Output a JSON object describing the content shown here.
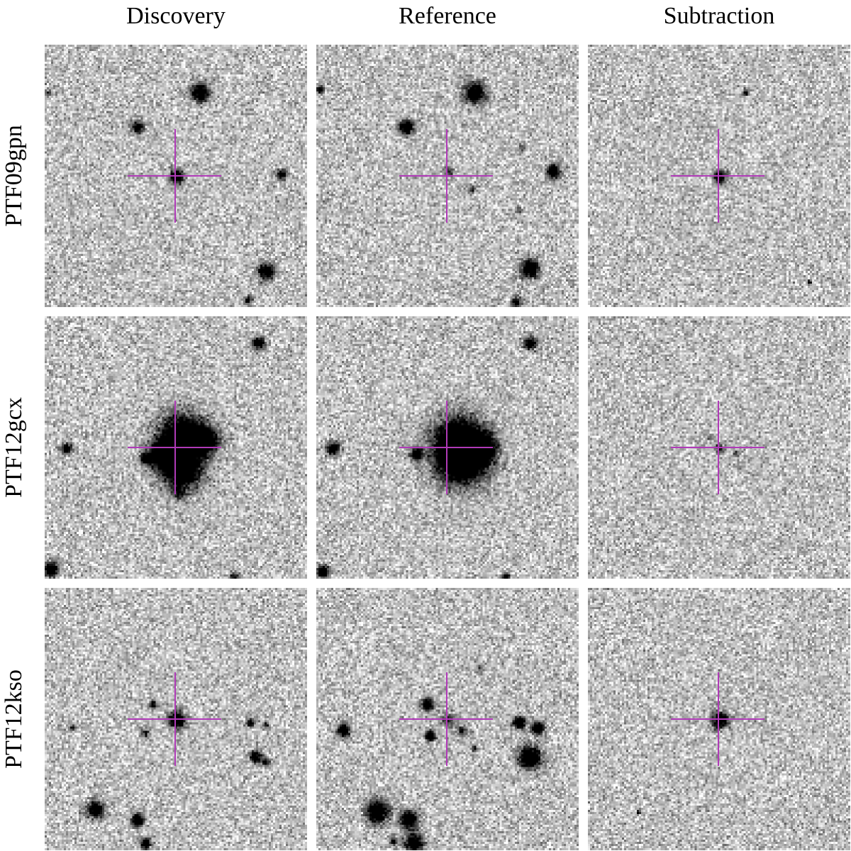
{
  "columns": [
    "Discovery",
    "Reference",
    "Subtraction"
  ],
  "rows": [
    {
      "label": "PTF09gpn",
      "panels": [
        {
          "seed": 11,
          "blobs": [
            [
              0.59,
              0.18,
              9,
              1
            ],
            [
              0.35,
              0.31,
              6,
              0.9
            ],
            [
              0.5,
              0.5,
              7,
              1
            ],
            [
              0.9,
              0.49,
              5,
              0.8
            ],
            [
              0.84,
              0.86,
              8,
              1
            ],
            [
              0.77,
              0.97,
              4,
              0.7
            ],
            [
              0.01,
              0.18,
              3,
              0.6
            ]
          ]
        },
        {
          "seed": 23,
          "blobs": [
            [
              0.6,
              0.18,
              10,
              1
            ],
            [
              0.34,
              0.31,
              7,
              1
            ],
            [
              0.5,
              0.48,
              5,
              0.55
            ],
            [
              0.59,
              0.55,
              4,
              0.5
            ],
            [
              0.9,
              0.48,
              7,
              1
            ],
            [
              0.81,
              0.85,
              9,
              1
            ],
            [
              0.76,
              0.98,
              5,
              0.8
            ],
            [
              0.78,
              0.39,
              3,
              0.5
            ],
            [
              0.01,
              0.17,
              4,
              0.7
            ],
            [
              0.77,
              0.63,
              3,
              0.5
            ]
          ]
        },
        {
          "seed": 37,
          "blobs": [
            [
              0.5,
              0.5,
              6,
              1
            ],
            [
              0.6,
              0.18,
              3,
              0.8
            ],
            [
              0.84,
              0.9,
              2,
              0.8
            ]
          ]
        }
      ],
      "crosshair": true
    },
    {
      "label": "PTF12gcx",
      "panels": [
        {
          "seed": 41,
          "blobs": [
            [
              0.52,
              0.45,
              22,
              1
            ],
            [
              0.52,
              0.58,
              20,
              1
            ],
            [
              0.61,
              0.47,
              13,
              0.9
            ],
            [
              0.45,
              0.52,
              14,
              1
            ],
            [
              0.38,
              0.54,
              5,
              1
            ],
            [
              0.08,
              0.5,
              5,
              0.9
            ],
            [
              0.81,
              0.1,
              6,
              1
            ],
            [
              0.02,
              0.96,
              7,
              1
            ],
            [
              0.72,
              0.99,
              4,
              0.8
            ],
            [
              0.51,
              0.67,
              6,
              0.5
            ]
          ]
        },
        {
          "seed": 53,
          "blobs": [
            [
              0.54,
              0.47,
              24,
              1
            ],
            [
              0.55,
              0.55,
              24,
              1
            ],
            [
              0.62,
              0.5,
              15,
              0.9
            ],
            [
              0.38,
              0.52,
              6,
              1
            ],
            [
              0.06,
              0.5,
              6,
              1
            ],
            [
              0.81,
              0.1,
              6,
              1
            ],
            [
              0.02,
              0.97,
              6,
              1
            ],
            [
              0.72,
              0.99,
              4,
              0.8
            ]
          ]
        },
        {
          "seed": 67,
          "blobs": [
            [
              0.5,
              0.5,
              5,
              0.55
            ],
            [
              0.46,
              0.46,
              3,
              0.4
            ],
            [
              0.56,
              0.52,
              3,
              0.4
            ]
          ]
        }
      ],
      "crosshair": true
    },
    {
      "label": "PTF12kso",
      "panels": [
        {
          "seed": 71,
          "blobs": [
            [
              0.5,
              0.5,
              8,
              1
            ],
            [
              0.41,
              0.44,
              4,
              0.8
            ],
            [
              0.38,
              0.55,
              4,
              0.6
            ],
            [
              0.1,
              0.53,
              3,
              0.6
            ],
            [
              0.19,
              0.84,
              8,
              1
            ],
            [
              0.35,
              0.88,
              6,
              1
            ],
            [
              0.38,
              0.97,
              5,
              0.9
            ],
            [
              0.78,
              0.51,
              4,
              0.7
            ],
            [
              0.84,
              0.52,
              3,
              0.6
            ],
            [
              0.8,
              0.64,
              6,
              0.9
            ],
            [
              0.84,
              0.66,
              4,
              0.7
            ]
          ]
        },
        {
          "seed": 83,
          "blobs": [
            [
              0.5,
              0.5,
              6,
              0.6
            ],
            [
              0.55,
              0.54,
              5,
              0.6
            ],
            [
              0.42,
              0.44,
              6,
              1
            ],
            [
              0.43,
              0.56,
              5,
              1
            ],
            [
              0.1,
              0.54,
              6,
              1
            ],
            [
              0.23,
              0.85,
              11,
              1
            ],
            [
              0.35,
              0.88,
              9,
              1
            ],
            [
              0.37,
              0.97,
              9,
              1
            ],
            [
              0.29,
              0.96,
              4,
              0.7
            ],
            [
              0.77,
              0.51,
              6,
              1
            ],
            [
              0.84,
              0.53,
              6,
              1
            ],
            [
              0.81,
              0.64,
              11,
              1
            ],
            [
              0.6,
              0.61,
              3,
              0.6
            ],
            [
              0.62,
              0.3,
              3,
              0.5
            ]
          ]
        },
        {
          "seed": 97,
          "blobs": [
            [
              0.5,
              0.5,
              8,
              1
            ],
            [
              0.19,
              0.85,
              2,
              0.8
            ]
          ]
        }
      ],
      "crosshair": true
    }
  ]
}
